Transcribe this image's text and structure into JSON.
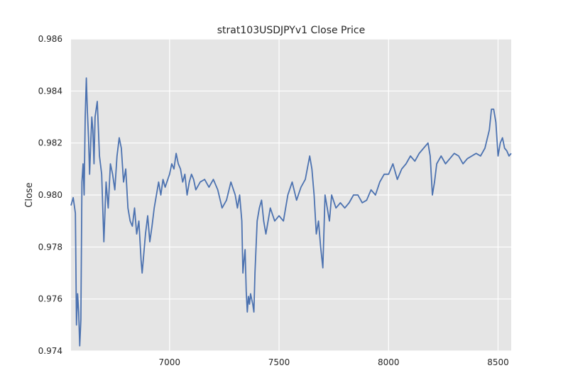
{
  "chart_data": {
    "type": "line",
    "title": "strat103USDJPYv1 Close Price",
    "xlabel": "",
    "ylabel": "Close",
    "xlim": [
      6550,
      8560
    ],
    "ylim": [
      0.974,
      0.986
    ],
    "xticks": [
      7000,
      7500,
      8000,
      8500
    ],
    "xtick_labels": [
      "7000",
      "7500",
      "8000",
      "8500"
    ],
    "yticks": [
      0.974,
      0.976,
      0.978,
      0.98,
      0.982,
      0.984,
      0.986
    ],
    "ytick_labels": [
      "0.974",
      "0.976",
      "0.978",
      "0.980",
      "0.982",
      "0.984",
      "0.986"
    ],
    "grid": true,
    "colors": {
      "background": "#e5e5e5",
      "grid": "#ffffff",
      "line": "#4c72b0"
    },
    "series": [
      {
        "x": [
          6550,
          6560,
          6570,
          6575,
          6580,
          6585,
          6590,
          6595,
          6600,
          6605,
          6610,
          6615,
          6620,
          6625,
          6630,
          6635,
          6640,
          6645,
          6650,
          6655,
          6660,
          6670,
          6680,
          6690,
          6700,
          6710,
          6720,
          6730,
          6740,
          6750,
          6760,
          6770,
          6780,
          6790,
          6800,
          6810,
          6820,
          6830,
          6840,
          6850,
          6860,
          6870,
          6875,
          6880,
          6890,
          6900,
          6910,
          6920,
          6930,
          6940,
          6950,
          6960,
          6970,
          6980,
          7000,
          7010,
          7020,
          7030,
          7040,
          7050,
          7060,
          7070,
          7080,
          7090,
          7100,
          7110,
          7120,
          7140,
          7160,
          7180,
          7200,
          7220,
          7240,
          7260,
          7280,
          7300,
          7310,
          7320,
          7330,
          7335,
          7340,
          7345,
          7350,
          7355,
          7360,
          7365,
          7370,
          7380,
          7385,
          7390,
          7400,
          7410,
          7420,
          7430,
          7440,
          7460,
          7480,
          7500,
          7520,
          7540,
          7560,
          7580,
          7600,
          7620,
          7640,
          7650,
          7660,
          7670,
          7680,
          7690,
          7700,
          7710,
          7720,
          7730,
          7740,
          7760,
          7780,
          7800,
          7820,
          7840,
          7860,
          7880,
          7900,
          7920,
          7940,
          7960,
          7980,
          8000,
          8020,
          8040,
          8060,
          8080,
          8100,
          8120,
          8140,
          8160,
          8180,
          8190,
          8200,
          8210,
          8220,
          8240,
          8260,
          8280,
          8300,
          8320,
          8340,
          8360,
          8380,
          8400,
          8420,
          8440,
          8460,
          8470,
          8480,
          8490,
          8500,
          8510,
          8520,
          8530,
          8540,
          8550,
          8560
        ],
        "y": [
          0.9796,
          0.9799,
          0.9793,
          0.975,
          0.9762,
          0.9755,
          0.9742,
          0.9752,
          0.9805,
          0.9812,
          0.98,
          0.983,
          0.9845,
          0.9832,
          0.9822,
          0.9808,
          0.982,
          0.983,
          0.9825,
          0.9812,
          0.983,
          0.9836,
          0.9815,
          0.9808,
          0.9782,
          0.9805,
          0.9795,
          0.9812,
          0.9808,
          0.9802,
          0.9815,
          0.9822,
          0.9818,
          0.9805,
          0.981,
          0.9795,
          0.979,
          0.9788,
          0.9795,
          0.9785,
          0.979,
          0.9775,
          0.977,
          0.9775,
          0.9785,
          0.9792,
          0.9782,
          0.9788,
          0.9795,
          0.98,
          0.9805,
          0.98,
          0.9806,
          0.9803,
          0.9808,
          0.9812,
          0.981,
          0.9816,
          0.9812,
          0.981,
          0.9805,
          0.9808,
          0.98,
          0.9805,
          0.9808,
          0.9806,
          0.9802,
          0.9805,
          0.9806,
          0.9803,
          0.9806,
          0.9802,
          0.9795,
          0.9798,
          0.9805,
          0.98,
          0.9795,
          0.98,
          0.979,
          0.977,
          0.9775,
          0.9779,
          0.9763,
          0.9755,
          0.9761,
          0.9758,
          0.9762,
          0.9758,
          0.9755,
          0.977,
          0.979,
          0.9795,
          0.9798,
          0.979,
          0.9785,
          0.9795,
          0.979,
          0.9792,
          0.979,
          0.98,
          0.9805,
          0.9798,
          0.9803,
          0.9806,
          0.9815,
          0.981,
          0.98,
          0.9785,
          0.979,
          0.978,
          0.9772,
          0.98,
          0.9795,
          0.979,
          0.98,
          0.9795,
          0.9797,
          0.9795,
          0.9797,
          0.98,
          0.98,
          0.9797,
          0.9798,
          0.9802,
          0.98,
          0.9805,
          0.9808,
          0.9808,
          0.9812,
          0.9806,
          0.981,
          0.9812,
          0.9815,
          0.9813,
          0.9816,
          0.9818,
          0.982,
          0.9815,
          0.98,
          0.9805,
          0.9812,
          0.9815,
          0.9812,
          0.9814,
          0.9816,
          0.9815,
          0.9812,
          0.9814,
          0.9815,
          0.9816,
          0.9815,
          0.9818,
          0.9825,
          0.9833,
          0.9833,
          0.9828,
          0.9815,
          0.982,
          0.9822,
          0.9818,
          0.9817,
          0.9815,
          0.9816
        ]
      }
    ]
  }
}
